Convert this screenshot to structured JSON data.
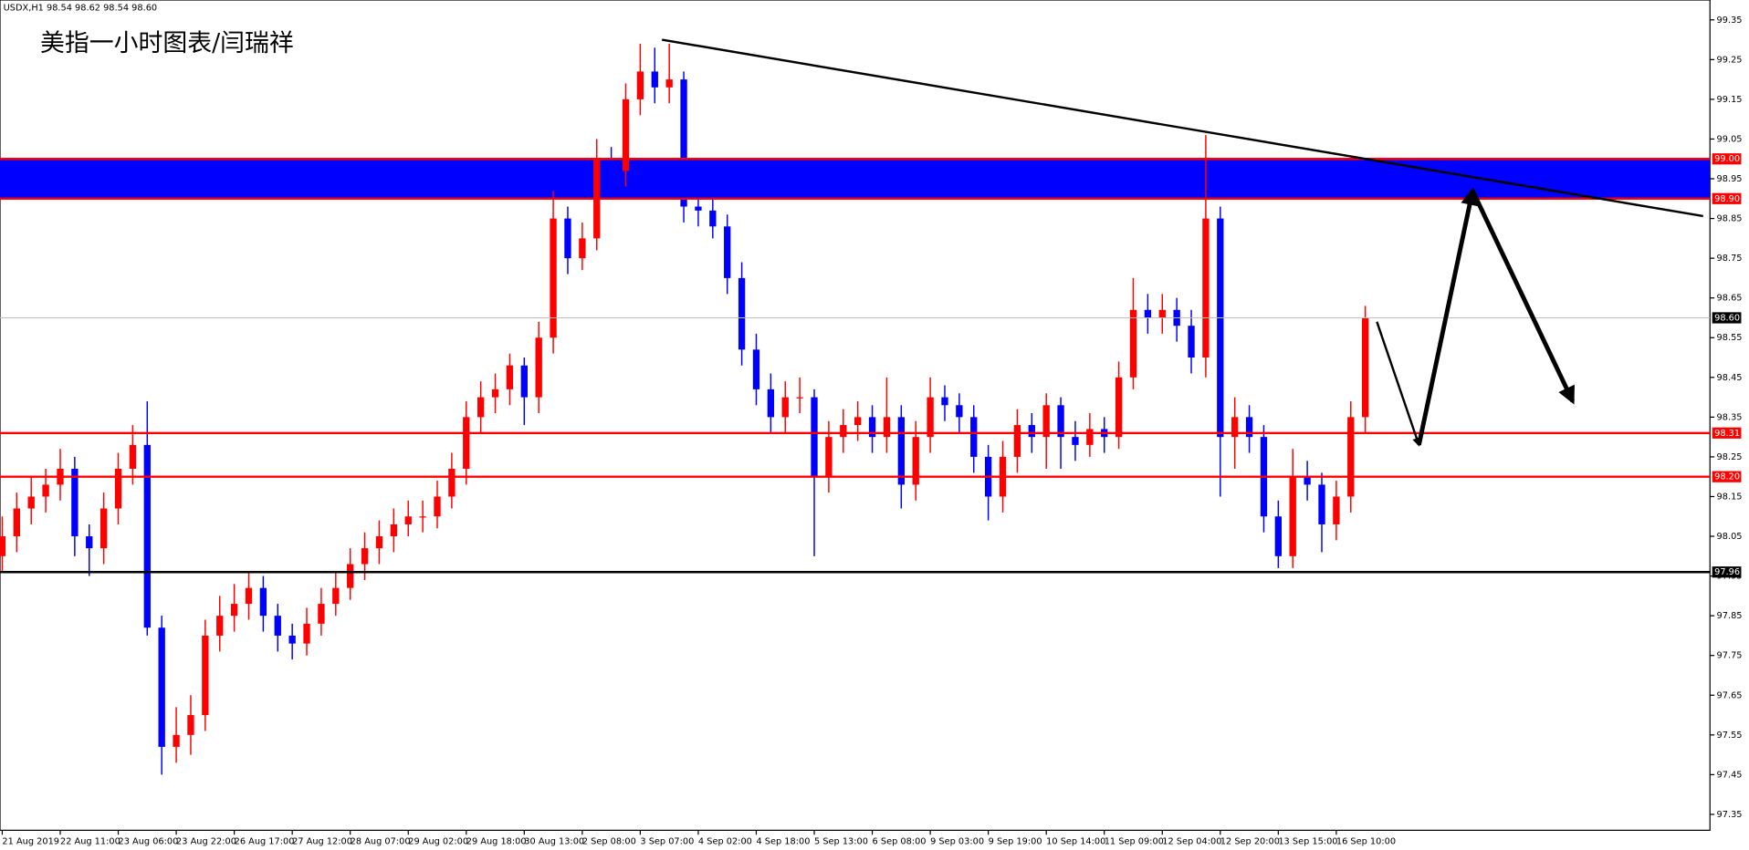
{
  "chart_data": {
    "type": "candlestick",
    "title": "美指一小时图表/闫瑞祥",
    "header": "USDX,H1  98.54 98.62 98.54 98.60",
    "up_color": "#ff0000",
    "down_color": "#0000ff",
    "ylim": [
      97.31,
      99.4
    ],
    "yticks": [
      99.35,
      99.25,
      99.15,
      99.05,
      98.95,
      98.85,
      98.75,
      98.65,
      98.55,
      98.45,
      98.35,
      98.25,
      98.15,
      98.05,
      97.95,
      97.85,
      97.75,
      97.65,
      97.55,
      97.45,
      97.35
    ],
    "categories": [
      "21 Aug 2019",
      null,
      null,
      null,
      "22 Aug 11:00",
      null,
      null,
      null,
      "23 Aug 06:00",
      null,
      null,
      null,
      "23 Aug 22:00",
      null,
      null,
      null,
      "26 Aug 17:00",
      null,
      null,
      null,
      "27 Aug 12:00",
      null,
      null,
      null,
      "28 Aug 07:00",
      null,
      null,
      null,
      "29 Aug 02:00",
      null,
      null,
      null,
      "29 Aug 18:00",
      null,
      null,
      null,
      "30 Aug 13:00",
      null,
      null,
      null,
      "2 Sep 08:00",
      null,
      null,
      null,
      "3 Sep 07:00",
      null,
      null,
      null,
      "4 Sep 02:00",
      null,
      null,
      null,
      "4 Sep 18:00",
      null,
      null,
      null,
      "5 Sep 13:00",
      null,
      null,
      null,
      "6 Sep 08:00",
      null,
      null,
      null,
      "9 Sep 03:00",
      null,
      null,
      null,
      "9 Sep 19:00",
      null,
      null,
      null,
      "10 Sep 14:00",
      null,
      null,
      null,
      "11 Sep 09:00",
      null,
      null,
      null,
      "12 Sep 04:00",
      null,
      null,
      null,
      "12 Sep 20:00",
      null,
      null,
      null,
      "13 Sep 15:00",
      null,
      null,
      null,
      "16 Sep 10:00",
      null,
      null
    ],
    "ohlc": [
      [
        98.0,
        98.1,
        97.96,
        98.05
      ],
      [
        98.05,
        98.16,
        98.01,
        98.12
      ],
      [
        98.12,
        98.2,
        98.08,
        98.15
      ],
      [
        98.15,
        98.22,
        98.11,
        98.18
      ],
      [
        98.18,
        98.27,
        98.14,
        98.22
      ],
      [
        98.22,
        98.25,
        98.0,
        98.05
      ],
      [
        98.05,
        98.08,
        97.95,
        98.02
      ],
      [
        98.02,
        98.16,
        97.98,
        98.12
      ],
      [
        98.12,
        98.26,
        98.08,
        98.22
      ],
      [
        98.22,
        98.33,
        98.18,
        98.28
      ],
      [
        98.28,
        98.39,
        97.8,
        97.82
      ],
      [
        97.82,
        97.85,
        97.45,
        97.52
      ],
      [
        97.52,
        97.62,
        97.48,
        97.55
      ],
      [
        97.55,
        97.65,
        97.5,
        97.6
      ],
      [
        97.6,
        97.84,
        97.56,
        97.8
      ],
      [
        97.8,
        97.9,
        97.76,
        97.85
      ],
      [
        97.85,
        97.93,
        97.81,
        97.88
      ],
      [
        97.88,
        97.96,
        97.84,
        97.92
      ],
      [
        97.92,
        97.95,
        97.81,
        97.85
      ],
      [
        97.85,
        97.88,
        97.76,
        97.8
      ],
      [
        97.8,
        97.83,
        97.74,
        97.78
      ],
      [
        97.78,
        97.87,
        97.75,
        97.83
      ],
      [
        97.83,
        97.92,
        97.8,
        97.88
      ],
      [
        97.88,
        97.96,
        97.85,
        97.92
      ],
      [
        97.92,
        98.02,
        97.89,
        97.98
      ],
      [
        97.98,
        98.06,
        97.94,
        98.02
      ],
      [
        98.02,
        98.09,
        97.98,
        98.05
      ],
      [
        98.05,
        98.12,
        98.01,
        98.08
      ],
      [
        98.08,
        98.14,
        98.05,
        98.1
      ],
      [
        98.1,
        98.14,
        98.06,
        98.1
      ],
      [
        98.1,
        98.19,
        98.07,
        98.15
      ],
      [
        98.15,
        98.26,
        98.12,
        98.22
      ],
      [
        98.22,
        98.39,
        98.18,
        98.35
      ],
      [
        98.35,
        98.44,
        98.31,
        98.4
      ],
      [
        98.4,
        98.46,
        98.36,
        98.42
      ],
      [
        98.42,
        98.51,
        98.38,
        98.48
      ],
      [
        98.48,
        98.5,
        98.33,
        98.4
      ],
      [
        98.4,
        98.59,
        98.36,
        98.55
      ],
      [
        98.55,
        98.92,
        98.51,
        98.85
      ],
      [
        98.85,
        98.88,
        98.71,
        98.75
      ],
      [
        98.75,
        98.84,
        98.72,
        98.8
      ],
      [
        98.8,
        99.05,
        98.77,
        99.0
      ],
      [
        99.0,
        99.03,
        98.9,
        98.97
      ],
      [
        98.97,
        99.19,
        98.93,
        99.15
      ],
      [
        99.15,
        99.29,
        99.11,
        99.22
      ],
      [
        99.22,
        99.28,
        99.14,
        99.18
      ],
      [
        99.18,
        99.29,
        99.14,
        99.2
      ],
      [
        99.2,
        99.22,
        98.84,
        98.88
      ],
      [
        98.88,
        98.93,
        98.83,
        98.87
      ],
      [
        98.87,
        98.9,
        98.8,
        98.83
      ],
      [
        98.83,
        98.86,
        98.66,
        98.7
      ],
      [
        98.7,
        98.74,
        98.48,
        98.52
      ],
      [
        98.52,
        98.56,
        98.38,
        98.42
      ],
      [
        98.42,
        98.46,
        98.31,
        98.35
      ],
      [
        98.35,
        98.44,
        98.31,
        98.4
      ],
      [
        98.4,
        98.45,
        98.36,
        98.4
      ],
      [
        98.4,
        98.42,
        98.0,
        98.2
      ],
      [
        98.2,
        98.34,
        98.16,
        98.3
      ],
      [
        98.3,
        98.37,
        98.26,
        98.33
      ],
      [
        98.33,
        98.39,
        98.29,
        98.35
      ],
      [
        98.35,
        98.38,
        98.26,
        98.3
      ],
      [
        98.3,
        98.45,
        98.26,
        98.35
      ],
      [
        98.35,
        98.38,
        98.12,
        98.18
      ],
      [
        98.18,
        98.34,
        98.14,
        98.3
      ],
      [
        98.3,
        98.45,
        98.26,
        98.4
      ],
      [
        98.4,
        98.43,
        98.34,
        98.38
      ],
      [
        98.38,
        98.41,
        98.31,
        98.35
      ],
      [
        98.35,
        98.38,
        98.21,
        98.25
      ],
      [
        98.25,
        98.28,
        98.09,
        98.15
      ],
      [
        98.15,
        98.29,
        98.11,
        98.25
      ],
      [
        98.25,
        98.37,
        98.21,
        98.33
      ],
      [
        98.33,
        98.36,
        98.26,
        98.3
      ],
      [
        98.3,
        98.41,
        98.22,
        98.38
      ],
      [
        98.38,
        98.4,
        98.22,
        98.3
      ],
      [
        98.3,
        98.34,
        98.24,
        98.28
      ],
      [
        98.28,
        98.36,
        98.25,
        98.32
      ],
      [
        98.32,
        98.35,
        98.26,
        98.3
      ],
      [
        98.3,
        98.49,
        98.27,
        98.45
      ],
      [
        98.45,
        98.7,
        98.42,
        98.62
      ],
      [
        98.62,
        98.66,
        98.56,
        98.6
      ],
      [
        98.6,
        98.66,
        98.56,
        98.62
      ],
      [
        98.62,
        98.65,
        98.54,
        98.58
      ],
      [
        98.58,
        98.62,
        98.46,
        98.5
      ],
      [
        98.5,
        99.06,
        98.45,
        98.85
      ],
      [
        98.85,
        98.88,
        98.15,
        98.3
      ],
      [
        98.3,
        98.4,
        98.22,
        98.35
      ],
      [
        98.35,
        98.38,
        98.26,
        98.3
      ],
      [
        98.3,
        98.33,
        98.06,
        98.1
      ],
      [
        98.1,
        98.14,
        97.97,
        98.0
      ],
      [
        98.0,
        98.27,
        97.97,
        98.2
      ],
      [
        98.2,
        98.24,
        98.14,
        98.18
      ],
      [
        98.18,
        98.21,
        98.01,
        98.08
      ],
      [
        98.08,
        98.19,
        98.04,
        98.15
      ],
      [
        98.15,
        98.39,
        98.11,
        98.35
      ],
      [
        98.35,
        98.63,
        98.31,
        98.6
      ]
    ],
    "zones": [
      {
        "low": 98.9,
        "high": 99.0,
        "color": "#0000ff"
      }
    ],
    "levels": [
      {
        "value": 99,
        "label": "99.00",
        "color": "#ff0000"
      },
      {
        "value": 98.9,
        "label": "98.90",
        "color": "#ff0000"
      },
      {
        "value": 98.6,
        "label": "98.60",
        "color": "#c0c0c0"
      },
      {
        "value": 98.31,
        "label": "98.31",
        "color": "#ff0000"
      },
      {
        "value": 98.2,
        "label": "98.20",
        "color": "#ff0000"
      },
      {
        "value": 97.96,
        "label": "97.96",
        "color": "#000000"
      }
    ],
    "trendline": {
      "x": [
        45.5,
        117.3
      ],
      "y": [
        99.3,
        98.856
      ]
    },
    "projection": {
      "x": [
        94.8,
        97.7,
        101.4,
        108.3
      ],
      "y": [
        98.59,
        98.28,
        98.92,
        98.39
      ]
    }
  }
}
